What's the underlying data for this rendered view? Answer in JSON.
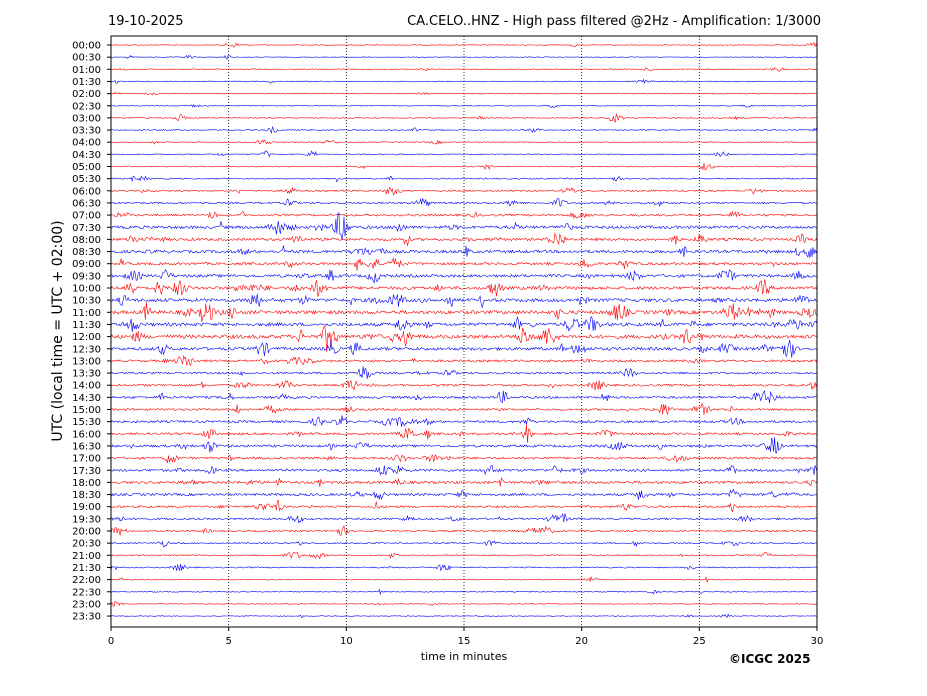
{
  "header": {
    "date": "19-10-2025",
    "title": "CA.CELO..HNZ - High pass filtered @2Hz - Amplification: 1/3000"
  },
  "footer": {
    "copyright": "©ICGC 2025"
  },
  "chart_data": {
    "type": "line",
    "title": "CA.CELO..HNZ - High pass filtered @2Hz - Amplification: 1/3000",
    "xlabel": "time in minutes",
    "ylabel": "UTC (local time = UTC + 02:00)",
    "xlim": [
      0,
      30
    ],
    "xticks": [
      0,
      5,
      10,
      15,
      20,
      25,
      30
    ],
    "grid": "vertical dotted lines at every 5 minutes",
    "trace_colors": [
      "#ff0000",
      "#0000ff"
    ],
    "rows": [
      "00:00",
      "00:30",
      "01:00",
      "01:30",
      "02:00",
      "02:30",
      "03:00",
      "03:30",
      "04:00",
      "04:30",
      "05:00",
      "05:30",
      "06:00",
      "06:30",
      "07:00",
      "07:30",
      "08:00",
      "08:30",
      "09:00",
      "09:30",
      "10:00",
      "10:30",
      "11:00",
      "11:30",
      "12:00",
      "12:30",
      "13:00",
      "13:30",
      "14:00",
      "14:30",
      "15:00",
      "15:30",
      "16:00",
      "16:30",
      "17:00",
      "17:30",
      "18:00",
      "18:30",
      "19:00",
      "19:30",
      "20:00",
      "20:30",
      "21:00",
      "21:30",
      "22:00",
      "22:30",
      "23:00",
      "23:30"
    ],
    "activity_level": [
      0.05,
      0.05,
      0.15,
      0.1,
      0.1,
      0.08,
      0.15,
      0.15,
      0.12,
      0.15,
      0.12,
      0.2,
      0.3,
      0.35,
      0.45,
      0.7,
      0.65,
      0.7,
      0.6,
      0.7,
      0.75,
      0.85,
      0.9,
      0.8,
      0.95,
      0.75,
      0.5,
      0.4,
      0.45,
      0.5,
      0.45,
      0.5,
      0.5,
      0.55,
      0.5,
      0.55,
      0.6,
      0.55,
      0.45,
      0.4,
      0.3,
      0.25,
      0.2,
      0.2,
      0.1,
      0.12,
      0.05,
      0.05
    ]
  }
}
